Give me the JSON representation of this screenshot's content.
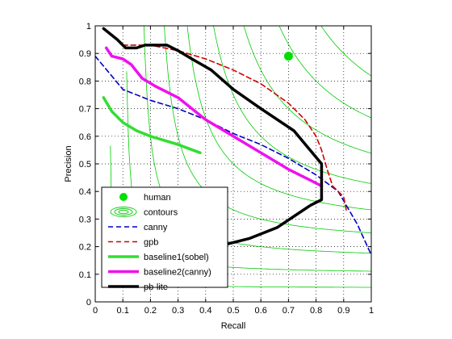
{
  "chart_data": {
    "type": "line",
    "xlabel": "Recall",
    "ylabel": "Precision",
    "xlim": [
      0,
      1
    ],
    "ylim": [
      0,
      1
    ],
    "xticks": [
      "0",
      "0.1",
      "0.2",
      "0.3",
      "0.4",
      "0.5",
      "0.6",
      "0.7",
      "0.8",
      "0.9",
      "1"
    ],
    "yticks": [
      "0",
      "0.1",
      "0.2",
      "0.3",
      "0.4",
      "0.5",
      "0.6",
      "0.7",
      "0.8",
      "0.9",
      "1"
    ],
    "grid": "dotted",
    "legend_position": "lower-left",
    "contours": {
      "name": "contours",
      "color": "#00cc00",
      "f_levels": [
        0.1,
        0.2,
        0.3,
        0.4,
        0.5,
        0.6,
        0.7,
        0.8,
        0.9
      ]
    },
    "series": [
      {
        "name": "human",
        "style": "marker",
        "color": "#00e000",
        "x": [
          0.7
        ],
        "y": [
          0.89
        ]
      },
      {
        "name": "canny",
        "style": "dashed",
        "color": "#0000c0",
        "x": [
          0.0,
          0.05,
          0.1,
          0.2,
          0.3,
          0.4,
          0.5,
          0.6,
          0.7,
          0.8,
          0.88,
          0.95,
          1.0
        ],
        "y": [
          0.89,
          0.83,
          0.77,
          0.73,
          0.7,
          0.66,
          0.61,
          0.57,
          0.52,
          0.46,
          0.4,
          0.28,
          0.17
        ]
      },
      {
        "name": "gpb",
        "style": "dashed",
        "color": "#d00000",
        "x": [
          0.1,
          0.2,
          0.3,
          0.4,
          0.5,
          0.6,
          0.7,
          0.76,
          0.8,
          0.82,
          0.84,
          0.86,
          0.88,
          0.9,
          0.91
        ],
        "y": [
          0.93,
          0.93,
          0.91,
          0.88,
          0.84,
          0.79,
          0.72,
          0.66,
          0.6,
          0.55,
          0.48,
          0.42,
          0.4,
          0.38,
          0.33
        ]
      },
      {
        "name": "baseline1(sobel)",
        "style": "solid",
        "color": "#33dd33",
        "x": [
          0.03,
          0.06,
          0.1,
          0.15,
          0.2,
          0.3,
          0.38
        ],
        "y": [
          0.74,
          0.69,
          0.65,
          0.62,
          0.6,
          0.57,
          0.54
        ]
      },
      {
        "name": "baseline2(canny)",
        "style": "solid",
        "color": "#ee11ee",
        "x": [
          0.04,
          0.06,
          0.1,
          0.13,
          0.17,
          0.22,
          0.3,
          0.4,
          0.5,
          0.6,
          0.7,
          0.8,
          0.82
        ],
        "y": [
          0.92,
          0.89,
          0.88,
          0.86,
          0.81,
          0.78,
          0.74,
          0.66,
          0.6,
          0.54,
          0.48,
          0.43,
          0.42
        ]
      },
      {
        "name": "pb-lite",
        "style": "solid",
        "color": "#000000",
        "x": [
          0.03,
          0.08,
          0.11,
          0.15,
          0.18,
          0.26,
          0.3,
          0.35,
          0.42,
          0.5,
          0.6,
          0.72,
          0.82,
          0.82,
          0.82,
          0.78,
          0.72,
          0.66,
          0.56,
          0.48
        ],
        "y": [
          0.99,
          0.95,
          0.92,
          0.92,
          0.93,
          0.93,
          0.91,
          0.88,
          0.84,
          0.77,
          0.7,
          0.62,
          0.5,
          0.43,
          0.37,
          0.35,
          0.31,
          0.27,
          0.23,
          0.21
        ]
      }
    ]
  }
}
